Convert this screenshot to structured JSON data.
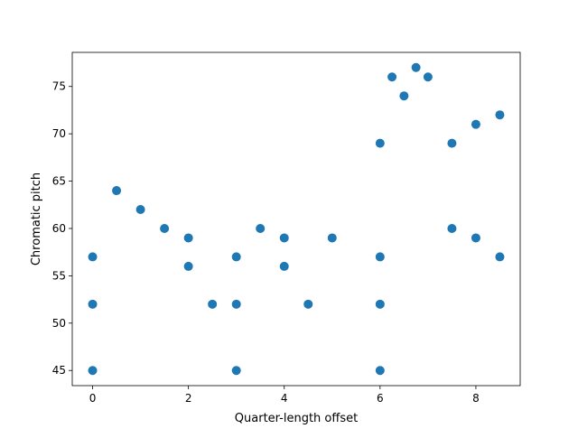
{
  "chart_data": {
    "type": "scatter",
    "title": "",
    "xlabel": "Quarter-length offset",
    "ylabel": "Chromatic pitch",
    "xlim": [
      -0.425,
      8.925
    ],
    "ylim": [
      43.4,
      78.6
    ],
    "xticks": [
      0,
      2,
      4,
      6,
      8
    ],
    "yticks": [
      45,
      50,
      55,
      60,
      65,
      70,
      75
    ],
    "xtick_labels": [
      "0",
      "2",
      "4",
      "6",
      "8"
    ],
    "ytick_labels": [
      "45",
      "50",
      "55",
      "60",
      "65",
      "70",
      "75"
    ],
    "grid": false,
    "legend": "none",
    "colors": {
      "marker": "#1f77b4",
      "axis": "#000000",
      "background": "#ffffff"
    },
    "series": [
      {
        "points": [
          [
            0,
            57
          ],
          [
            0,
            52
          ],
          [
            0,
            45
          ],
          [
            0.5,
            64
          ],
          [
            1,
            62
          ],
          [
            1.5,
            60
          ],
          [
            2,
            59
          ],
          [
            2,
            56
          ],
          [
            2.5,
            52
          ],
          [
            3,
            57
          ],
          [
            3,
            52
          ],
          [
            3,
            45
          ],
          [
            3.5,
            60
          ],
          [
            4,
            59
          ],
          [
            4,
            56
          ],
          [
            4.5,
            52
          ],
          [
            5,
            59
          ],
          [
            6,
            69
          ],
          [
            6,
            57
          ],
          [
            6,
            52
          ],
          [
            6,
            45
          ],
          [
            6.25,
            76
          ],
          [
            6.5,
            74
          ],
          [
            6.75,
            77
          ],
          [
            7,
            76
          ],
          [
            7.5,
            69
          ],
          [
            7.5,
            60
          ],
          [
            8,
            71
          ],
          [
            8,
            59
          ],
          [
            8.5,
            72
          ],
          [
            8.5,
            57
          ]
        ]
      }
    ]
  }
}
